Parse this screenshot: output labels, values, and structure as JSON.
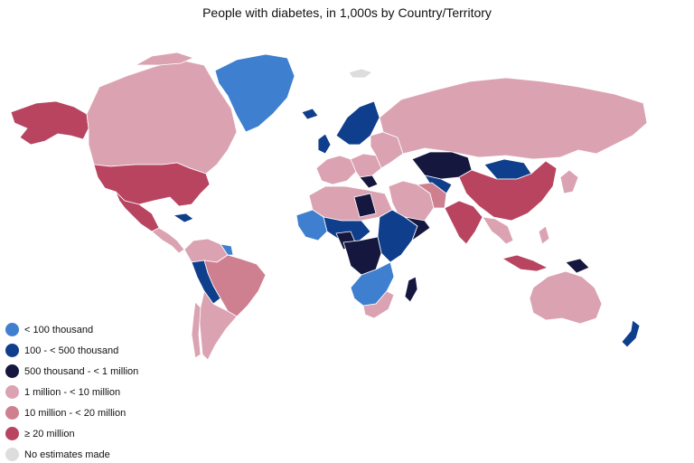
{
  "title": "People with diabetes, in 1,000s by Country/Territory",
  "legend": [
    {
      "label": "< 100 thousand",
      "color": "#3f7fcf",
      "key": "lt100k"
    },
    {
      "label": "100 - < 500 thousand",
      "color": "#0f3f8c",
      "key": "100k_500k"
    },
    {
      "label": "500 thousand - < 1 million",
      "color": "#15173f",
      "key": "500k_1m"
    },
    {
      "label": "1 million - < 10 million",
      "color": "#dba3b2",
      "key": "1m_10m"
    },
    {
      "label": "10 million - < 20 million",
      "color": "#cf8090",
      "key": "10m_20m"
    },
    {
      "label": "≥ 20 million",
      "color": "#b84460",
      "key": "gte20m"
    },
    {
      "label": "No estimates made",
      "color": "#dddddd",
      "key": "none"
    }
  ]
}
